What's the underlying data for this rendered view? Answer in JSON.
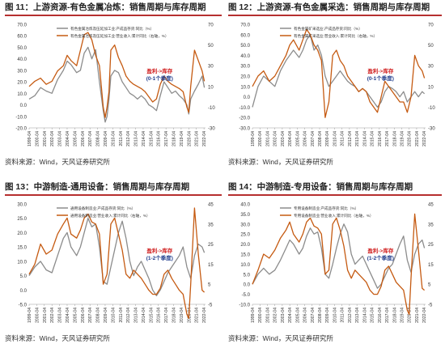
{
  "colors": {
    "gray": "#8c8c8c",
    "orange": "#c55a11",
    "annot_red": "#d02020",
    "annot_blue": "#1f3c8c",
    "title_rule": "#b62f2f"
  },
  "source_text": "资料来源：Wind，天风证券研究所",
  "annotations": [
    {
      "line1": "盈利->库存",
      "line2": "(0-1个季度)"
    },
    {
      "line1": "盈利->库存",
      "line2": "(0-1个季度)"
    },
    {
      "line1": "盈利->库存",
      "line2": "(1-2个季度)"
    },
    {
      "line1": "盈利->库存",
      "line2": "(1-2个季度)"
    }
  ],
  "chart_data": [
    {
      "type": "line",
      "title": "图 11：上游资源-有色金属冶炼：销售周期与库存周期",
      "x_ticks": [
        "1999-04",
        "2000-04",
        "2001-04",
        "2002-04",
        "2003-04",
        "2004-04",
        "2005-04",
        "2006-04",
        "2007-04",
        "2008-04",
        "2009-04",
        "2010-04",
        "2011-04",
        "2012-04",
        "2013-04",
        "2014-04",
        "2015-04",
        "2016-04",
        "2017-04",
        "2018-04",
        "2019-04",
        "2020-04",
        "2021-04",
        "2022-04"
      ],
      "y_left_ticks": [
        "-20.0",
        "-10.0",
        "0.0",
        "10.0",
        "20.0",
        "30.0",
        "40.0",
        "50.0",
        "60.0",
        "70.0"
      ],
      "y_right_ticks": [
        "-30",
        "-10",
        "10",
        "30",
        "50",
        "70"
      ],
      "y_left_lim": [
        -20,
        70
      ],
      "y_right_lim": [
        -30,
        70
      ],
      "series": [
        {
          "name": "有色金属冶炼及压延加工业:产成品存货:同比（%）",
          "axis": "left",
          "x": [
            1999.25,
            2000.0,
            2000.75,
            2001.5,
            2002.25,
            2003.0,
            2003.75,
            2004.25,
            2004.75,
            2005.5,
            2006.0,
            2006.5,
            2007.0,
            2007.5,
            2008.0,
            2008.5,
            2009.0,
            2009.25,
            2009.5,
            2009.75,
            2010.0,
            2010.5,
            2011.0,
            2011.5,
            2012.0,
            2012.5,
            2013.0,
            2013.5,
            2014.0,
            2014.5,
            2015.0,
            2015.5,
            2016.0,
            2016.5,
            2017.0,
            2017.5,
            2018.0,
            2018.5,
            2019.0,
            2019.5,
            2020.0,
            2020.25,
            2020.5,
            2021.0,
            2021.5,
            2022.0,
            2022.3
          ],
          "values": [
            5,
            8,
            15,
            12,
            10,
            22,
            30,
            38,
            35,
            28,
            30,
            45,
            50,
            40,
            48,
            20,
            -5,
            -15,
            -10,
            5,
            25,
            30,
            28,
            20,
            15,
            10,
            8,
            5,
            8,
            5,
            0,
            -2,
            -5,
            8,
            20,
            15,
            10,
            12,
            8,
            5,
            0,
            -8,
            5,
            12,
            18,
            25,
            15
          ]
        },
        {
          "name": "有色金属冶炼及压延加工业:营业收入:累计同比（右轴，%）",
          "axis": "right",
          "x": [
            1999.25,
            2000.0,
            2000.75,
            2001.5,
            2002.25,
            2003.0,
            2003.75,
            2004.25,
            2004.75,
            2005.5,
            2006.0,
            2006.5,
            2007.0,
            2007.5,
            2008.0,
            2008.5,
            2009.0,
            2009.25,
            2009.5,
            2009.75,
            2010.0,
            2010.5,
            2011.0,
            2011.5,
            2012.0,
            2012.5,
            2013.0,
            2013.5,
            2014.0,
            2014.5,
            2015.0,
            2015.5,
            2016.0,
            2016.5,
            2017.0,
            2017.5,
            2018.0,
            2018.5,
            2019.0,
            2019.5,
            2020.0,
            2020.25,
            2020.5,
            2021.0,
            2021.5,
            2022.0,
            2022.3
          ],
          "values": [
            10,
            15,
            18,
            12,
            15,
            25,
            30,
            40,
            35,
            30,
            45,
            60,
            62,
            55,
            40,
            30,
            -10,
            -20,
            -10,
            5,
            45,
            50,
            38,
            30,
            20,
            15,
            12,
            10,
            8,
            5,
            0,
            -5,
            -2,
            12,
            20,
            15,
            12,
            10,
            8,
            5,
            -10,
            -15,
            10,
            45,
            35,
            25,
            15
          ]
        }
      ],
      "annotation_index": 0
    },
    {
      "type": "line",
      "title": "图 12：上游资源-有色金属采选：销售周期与库存周期",
      "x_ticks": [
        "1999-04",
        "2000-04",
        "2001-04",
        "2002-04",
        "2003-04",
        "2004-04",
        "2005-04",
        "2006-04",
        "2007-04",
        "2008-04",
        "2009-04",
        "2010-04",
        "2011-04",
        "2012-04",
        "2013-04",
        "2014-04",
        "2015-04",
        "2016-04",
        "2017-04",
        "2018-04",
        "2019-04",
        "2020-04",
        "2021-04",
        "2022-04"
      ],
      "y_left_ticks": [
        "-30.0",
        "-20.0",
        "-10.0",
        "0.0",
        "10.0",
        "20.0",
        "30.0",
        "40.0",
        "50.0",
        "60.0",
        "70.0"
      ],
      "y_right_ticks": [
        "-30",
        "-10",
        "10",
        "30",
        "50",
        "70"
      ],
      "y_left_lim": [
        -30,
        70
      ],
      "y_right_lim": [
        -30,
        70
      ],
      "series": [
        {
          "name": "有色金属矿采选业:产成品存货:同比（%）",
          "axis": "left",
          "x": [
            1999.25,
            2000.0,
            2000.75,
            2001.5,
            2002.25,
            2003.0,
            2003.75,
            2004.25,
            2004.75,
            2005.5,
            2006.0,
            2006.5,
            2007.0,
            2007.5,
            2008.0,
            2008.5,
            2009.0,
            2009.5,
            2010.0,
            2010.5,
            2011.0,
            2011.5,
            2012.0,
            2012.5,
            2013.0,
            2013.5,
            2014.0,
            2014.5,
            2015.0,
            2015.5,
            2016.0,
            2016.5,
            2017.0,
            2017.5,
            2018.0,
            2018.5,
            2019.0,
            2019.5,
            2020.0,
            2020.5,
            2021.0,
            2021.5,
            2022.0,
            2022.3
          ],
          "values": [
            -10,
            10,
            20,
            15,
            10,
            25,
            35,
            40,
            45,
            38,
            45,
            55,
            60,
            45,
            50,
            40,
            20,
            10,
            15,
            20,
            25,
            20,
            15,
            12,
            10,
            5,
            8,
            5,
            0,
            -5,
            -10,
            -5,
            5,
            10,
            8,
            5,
            0,
            5,
            -5,
            0,
            5,
            0,
            5,
            3
          ]
        },
        {
          "name": "有色金属矿采选业:营业收入:累计同比（右轴，%）",
          "axis": "right",
          "x": [
            1999.25,
            2000.0,
            2000.75,
            2001.5,
            2002.25,
            2003.0,
            2003.75,
            2004.25,
            2004.75,
            2005.5,
            2006.0,
            2006.5,
            2007.0,
            2007.5,
            2008.0,
            2008.5,
            2009.0,
            2009.5,
            2010.0,
            2010.5,
            2011.0,
            2011.5,
            2012.0,
            2012.5,
            2013.0,
            2013.5,
            2014.0,
            2014.5,
            2015.0,
            2015.5,
            2016.0,
            2016.5,
            2017.0,
            2017.5,
            2018.0,
            2018.5,
            2019.0,
            2019.5,
            2020.0,
            2020.5,
            2021.0,
            2021.5,
            2022.0,
            2022.3
          ],
          "values": [
            10,
            20,
            25,
            15,
            20,
            30,
            40,
            50,
            55,
            45,
            55,
            65,
            60,
            50,
            45,
            35,
            -20,
            -5,
            40,
            45,
            35,
            30,
            20,
            15,
            10,
            5,
            8,
            5,
            -5,
            -10,
            -15,
            0,
            15,
            10,
            5,
            0,
            -5,
            -5,
            -15,
            0,
            40,
            30,
            25,
            18
          ]
        }
      ],
      "annotation_index": 1
    },
    {
      "type": "line",
      "title": "图 13：中游制造-通用设备：销售周期与库存周期",
      "x_ticks": [
        "1999-04",
        "2000-04",
        "2001-04",
        "2002-04",
        "2003-04",
        "2004-04",
        "2005-04",
        "2006-04",
        "2007-04",
        "2008-04",
        "2009-04",
        "2010-04",
        "2011-04",
        "2012-04",
        "2013-04",
        "2014-04",
        "2015-04",
        "2016-04",
        "2017-04",
        "2018-04",
        "2019-04",
        "2020-04",
        "2021-04",
        "2022-04"
      ],
      "y_left_ticks": [
        "-5.0",
        "0.0",
        "5.0",
        "10.0",
        "15.0",
        "20.0",
        "25.0",
        "30.0"
      ],
      "y_right_ticks": [
        "-5",
        "5",
        "15",
        "25",
        "35",
        "45"
      ],
      "y_left_lim": [
        -5,
        30
      ],
      "y_right_lim": [
        -5,
        45
      ],
      "series": [
        {
          "name": "通用设备制造业:产成品存货:同比（%）",
          "axis": "left",
          "x": [
            1999.25,
            2000.0,
            2000.75,
            2001.5,
            2002.25,
            2003.0,
            2003.75,
            2004.25,
            2004.75,
            2005.5,
            2006.0,
            2006.5,
            2007.0,
            2007.5,
            2008.0,
            2008.5,
            2009.0,
            2009.5,
            2010.0,
            2010.5,
            2011.0,
            2011.5,
            2012.0,
            2012.5,
            2013.0,
            2013.5,
            2014.0,
            2014.5,
            2015.0,
            2015.5,
            2016.0,
            2016.5,
            2017.0,
            2017.5,
            2018.0,
            2018.5,
            2019.0,
            2019.5,
            2020.0,
            2020.5,
            2021.0,
            2021.5,
            2022.0,
            2022.3
          ],
          "values": [
            5,
            8,
            10,
            7,
            6,
            12,
            18,
            20,
            15,
            12,
            15,
            20,
            25,
            22,
            23,
            15,
            3,
            2,
            8,
            14,
            20,
            24,
            18,
            10,
            5,
            8,
            10,
            7,
            4,
            0,
            -2,
            0,
            3,
            6,
            8,
            10,
            12,
            15,
            8,
            4,
            12,
            16,
            15,
            13
          ]
        },
        {
          "name": "通用设备制造业:营业收入:累计同比（右轴，%）",
          "axis": "right",
          "x": [
            1999.25,
            2000.0,
            2000.75,
            2001.5,
            2002.25,
            2003.0,
            2003.75,
            2004.25,
            2004.75,
            2005.5,
            2006.0,
            2006.5,
            2007.0,
            2007.5,
            2008.0,
            2008.5,
            2009.0,
            2009.5,
            2010.0,
            2010.5,
            2011.0,
            2011.5,
            2012.0,
            2012.5,
            2013.0,
            2013.5,
            2014.0,
            2014.5,
            2015.0,
            2015.5,
            2016.0,
            2016.5,
            2017.0,
            2017.5,
            2018.0,
            2018.5,
            2019.0,
            2019.5,
            2020.0,
            2020.25,
            2020.5,
            2021.0,
            2021.5,
            2022.0,
            2022.3
          ],
          "values": [
            10,
            15,
            25,
            20,
            22,
            30,
            35,
            38,
            30,
            28,
            32,
            38,
            40,
            36,
            35,
            30,
            5,
            10,
            35,
            38,
            30,
            22,
            10,
            8,
            12,
            10,
            8,
            5,
            2,
            0,
            0,
            3,
            10,
            12,
            8,
            5,
            2,
            0,
            -10,
            -12,
            5,
            43,
            20,
            2,
            1
          ]
        }
      ],
      "annotation_index": 2
    },
    {
      "type": "line",
      "title": "图 14：中游制造-专用设备：销售周期与库存周期",
      "x_ticks": [
        "1999-04",
        "2000-04",
        "2001-04",
        "2002-04",
        "2003-04",
        "2004-04",
        "2005-04",
        "2006-04",
        "2007-04",
        "2008-04",
        "2009-04",
        "2010-04",
        "2011-04",
        "2012-04",
        "2013-04",
        "2014-04",
        "2015-04",
        "2016-04",
        "2017-04",
        "2018-04",
        "2019-04",
        "2020-04",
        "2021-04",
        "2022-04"
      ],
      "y_left_ticks": [
        "-10.0",
        "-5.0",
        "0.0",
        "5.0",
        "10.0",
        "15.0",
        "20.0",
        "25.0",
        "30.0",
        "35.0",
        "40.0"
      ],
      "y_right_ticks": [
        "-5",
        "5",
        "15",
        "25",
        "35",
        "45"
      ],
      "y_left_lim": [
        -10,
        40
      ],
      "y_right_lim": [
        -5,
        45
      ],
      "series": [
        {
          "name": "专用设备制造业:产成品存货:同比（%）",
          "axis": "left",
          "x": [
            1999.25,
            2000.0,
            2000.75,
            2001.5,
            2002.25,
            2003.0,
            2003.75,
            2004.25,
            2004.75,
            2005.5,
            2006.0,
            2006.5,
            2007.0,
            2007.5,
            2008.0,
            2008.5,
            2009.0,
            2009.5,
            2010.0,
            2010.5,
            2011.0,
            2011.5,
            2012.0,
            2012.5,
            2013.0,
            2013.5,
            2014.0,
            2014.5,
            2015.0,
            2015.5,
            2016.0,
            2016.5,
            2017.0,
            2017.5,
            2018.0,
            2018.5,
            2019.0,
            2019.5,
            2020.0,
            2020.5,
            2021.0,
            2021.5,
            2022.0,
            2022.3
          ],
          "values": [
            0,
            5,
            8,
            5,
            7,
            12,
            18,
            22,
            20,
            15,
            18,
            24,
            28,
            25,
            26,
            18,
            5,
            3,
            10,
            18,
            25,
            30,
            26,
            15,
            10,
            12,
            14,
            10,
            6,
            2,
            -2,
            0,
            4,
            8,
            10,
            15,
            20,
            24,
            12,
            6,
            15,
            20,
            22,
            18
          ]
        },
        {
          "name": "专用设备制造业:营业收入:累计同比（右轴，%）",
          "axis": "right",
          "x": [
            1999.25,
            2000.0,
            2000.75,
            2001.5,
            2002.25,
            2003.0,
            2003.75,
            2004.25,
            2004.75,
            2005.5,
            2006.0,
            2006.5,
            2007.0,
            2007.5,
            2008.0,
            2008.5,
            2009.0,
            2009.5,
            2010.0,
            2010.5,
            2011.0,
            2011.5,
            2012.0,
            2012.5,
            2013.0,
            2013.5,
            2014.0,
            2014.5,
            2015.0,
            2015.5,
            2016.0,
            2016.5,
            2017.0,
            2017.5,
            2018.0,
            2018.5,
            2019.0,
            2019.5,
            2020.0,
            2020.25,
            2020.5,
            2021.0,
            2021.5,
            2022.0,
            2022.3
          ],
          "values": [
            5,
            12,
            20,
            18,
            22,
            28,
            32,
            36,
            30,
            26,
            30,
            36,
            38,
            34,
            33,
            30,
            10,
            12,
            35,
            38,
            32,
            24,
            12,
            8,
            12,
            10,
            8,
            6,
            2,
            0,
            0,
            4,
            12,
            14,
            10,
            6,
            4,
            2,
            -8,
            -10,
            8,
            40,
            22,
            3,
            2
          ]
        }
      ],
      "annotation_index": 3
    }
  ]
}
